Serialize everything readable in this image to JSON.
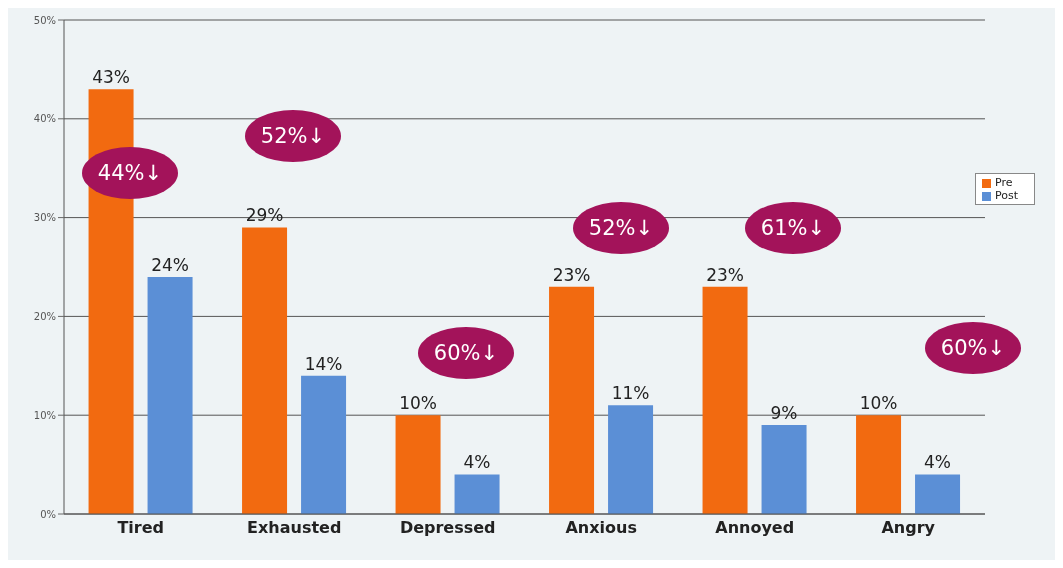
{
  "chart_data": {
    "type": "bar",
    "categories": [
      "Tired",
      "Exhausted",
      "Depressed",
      "Anxious",
      "Annoyed",
      "Angry"
    ],
    "series": [
      {
        "name": "Pre",
        "color": "#f26a10",
        "values": [
          43,
          29,
          10,
          23,
          23,
          10
        ],
        "value_labels": [
          "43%",
          "29%",
          "10%",
          "23%",
          "23%",
          "10%"
        ]
      },
      {
        "name": "Post",
        "color": "#5b8fd6",
        "values": [
          24,
          14,
          4,
          11,
          9,
          4
        ],
        "value_labels": [
          "24%",
          "14%",
          "4%",
          "11%",
          "9%",
          "4%"
        ]
      }
    ],
    "ylim": [
      0,
      50
    ],
    "yticks": [
      {
        "value": 0,
        "label": "0%"
      },
      {
        "value": 10,
        "label": "10%"
      },
      {
        "value": 20,
        "label": "20%"
      },
      {
        "value": 30,
        "label": "30%"
      },
      {
        "value": 40,
        "label": "40%"
      },
      {
        "value": 50,
        "label": "50%"
      }
    ],
    "grid": "y",
    "legend": "right",
    "annotations": [
      "44%↓",
      "52%↓",
      "60%↓",
      "52%↓",
      "61%↓",
      "60%↓"
    ]
  }
}
